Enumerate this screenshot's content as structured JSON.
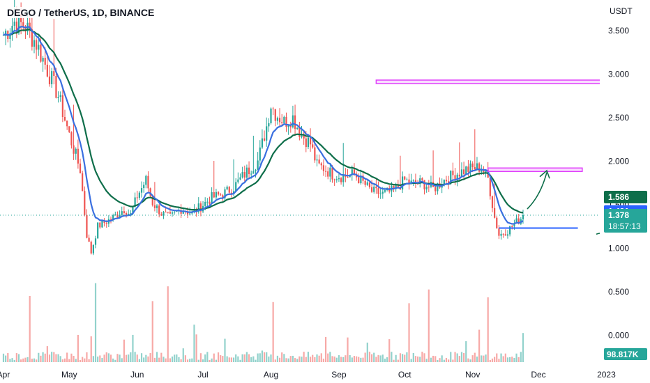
{
  "header": {
    "title": "DEGO / TetherUS, 1D, BINANCE"
  },
  "axis": {
    "currency": "USDT"
  },
  "chart_data": {
    "type": "candlestick",
    "symbol": "DEGO / TetherUS",
    "interval": "1D",
    "exchange": "BINANCE",
    "y_ticks": [
      3.5,
      3.0,
      2.5,
      2.0,
      1.5,
      1.0,
      0.5,
      0.0
    ],
    "y_tick_labels": [
      "3.500",
      "3.000",
      "2.500",
      "2.000",
      "1.500",
      "1.000",
      "0.500",
      "0.000"
    ],
    "ylim": [
      -0.35,
      3.85
    ],
    "x_labels": [
      "Apr",
      "May",
      "Jun",
      "Jul",
      "Aug",
      "Sep",
      "Oct",
      "Nov",
      "Dec",
      "2023"
    ],
    "x_label_days": [
      0,
      30,
      61,
      91,
      122,
      153,
      183,
      214,
      244,
      275
    ],
    "last_day": 237,
    "right_pad_days": 35,
    "close_anchors": [
      [
        0,
        3.45
      ],
      [
        5,
        3.6
      ],
      [
        10,
        3.55
      ],
      [
        15,
        3.35
      ],
      [
        20,
        3.05
      ],
      [
        25,
        2.75
      ],
      [
        30,
        2.3
      ],
      [
        35,
        1.9
      ],
      [
        38,
        1.15
      ],
      [
        40,
        0.95
      ],
      [
        43,
        1.25
      ],
      [
        50,
        1.35
      ],
      [
        55,
        1.45
      ],
      [
        58,
        1.38
      ],
      [
        61,
        1.6
      ],
      [
        65,
        1.78
      ],
      [
        68,
        1.52
      ],
      [
        72,
        1.4
      ],
      [
        76,
        1.35
      ],
      [
        81,
        1.45
      ],
      [
        86,
        1.4
      ],
      [
        91,
        1.5
      ],
      [
        95,
        1.58
      ],
      [
        100,
        1.62
      ],
      [
        105,
        1.7
      ],
      [
        110,
        1.85
      ],
      [
        116,
        2.0
      ],
      [
        120,
        2.4
      ],
      [
        122,
        2.65
      ],
      [
        124,
        2.55
      ],
      [
        128,
        2.45
      ],
      [
        132,
        2.5
      ],
      [
        136,
        2.3
      ],
      [
        140,
        2.2
      ],
      [
        143,
        1.95
      ],
      [
        146,
        1.92
      ],
      [
        150,
        1.85
      ],
      [
        155,
        1.82
      ],
      [
        160,
        1.85
      ],
      [
        164,
        1.75
      ],
      [
        168,
        1.65
      ],
      [
        173,
        1.62
      ],
      [
        178,
        1.66
      ],
      [
        183,
        1.78
      ],
      [
        186,
        1.74
      ],
      [
        191,
        1.75
      ],
      [
        196,
        1.68
      ],
      [
        201,
        1.78
      ],
      [
        206,
        1.85
      ],
      [
        211,
        1.9
      ],
      [
        215,
        1.92
      ],
      [
        218,
        1.93
      ],
      [
        221,
        1.8
      ],
      [
        223,
        1.5
      ],
      [
        224,
        1.35
      ],
      [
        226,
        1.15
      ],
      [
        230,
        1.2
      ],
      [
        233,
        1.28
      ],
      [
        236,
        1.34
      ],
      [
        237,
        1.378
      ]
    ],
    "series": [
      {
        "name": "Blue MA",
        "color": "#3a6fe0",
        "last_value": 1.421
      },
      {
        "name": "Green MA",
        "color": "#0e6e4a",
        "last_value": 1.586
      }
    ],
    "price_badges": [
      {
        "value": 1.586,
        "label": "1.586",
        "color": "#0e6e4a"
      },
      {
        "value": 1.421,
        "label": "1.421",
        "color": "#2962ff"
      },
      {
        "value": 1.378,
        "label": "1.378",
        "sublabel": "18:57:13",
        "color": "#26a69a"
      }
    ],
    "volume_label": "98.817K",
    "drawings": [
      {
        "kind": "rect",
        "day_start": 170,
        "day_end": 278,
        "price_top": 2.93,
        "price_bottom": 2.89,
        "color": "#e040fb"
      },
      {
        "kind": "rect",
        "day_start": 221,
        "day_end": 264,
        "price_top": 1.92,
        "price_bottom": 1.88,
        "color": "#e040fb"
      },
      {
        "kind": "line",
        "day_start": 226,
        "day_end": 262,
        "price": 1.23,
        "color": "#2962ff"
      }
    ],
    "grid": false
  }
}
